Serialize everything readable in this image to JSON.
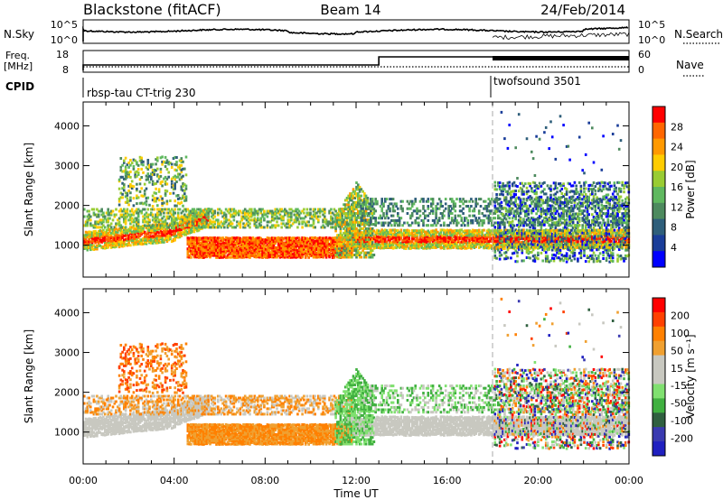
{
  "header": {
    "site": "Blackstone (fitACF)",
    "beam": "Beam 14",
    "date": "24/Feb/2014"
  },
  "top_panels": {
    "nsky_label": "N.Sky",
    "nsky_ticks": [
      "10^5",
      "10^0"
    ],
    "nsearch_label": "N.Search",
    "freq_label": "Freq.",
    "freq_unit": "[MHz]",
    "freq_ticks": [
      "18",
      "8"
    ],
    "nave_label": "Nave",
    "nave_ticks": [
      "60",
      "0"
    ],
    "cpid_label": "CPID",
    "cpid_segments": [
      {
        "name": "rbsp-tau CT-trig 230",
        "start_hour": 0
      },
      {
        "name": "twofsound 3501",
        "start_hour": 18
      }
    ]
  },
  "colors": {
    "power": [
      "#0000ff",
      "#1a3d99",
      "#2e5e7a",
      "#4d8a5e",
      "#5fb85f",
      "#99cc33",
      "#ffcc00",
      "#ff9900",
      "#ff6600",
      "#ff0000"
    ],
    "velocity": [
      "#2020c0",
      "#3a3ab0",
      "#306040",
      "#40b040",
      "#80e070",
      "#c8c8c0",
      "#c8c8c0",
      "#f0a030",
      "#ff8000",
      "#ff4000",
      "#ff0000"
    ]
  },
  "chart_data": [
    {
      "type": "heatmap",
      "name": "power",
      "xlabel": "",
      "ylabel": "Slant Range [km]",
      "xlim": [
        0,
        24
      ],
      "ylim": [
        200,
        4600
      ],
      "yticks": [
        1000,
        2000,
        3000,
        4000
      ],
      "colorbar_label": "Power [dB]",
      "colorbar_ticks": [
        "28",
        "24",
        "20",
        "16",
        "12",
        "8",
        "4"
      ],
      "clim": [
        0,
        32
      ]
    },
    {
      "type": "heatmap",
      "name": "velocity",
      "xlabel": "Time UT",
      "ylabel": "Slant Range [km]",
      "xlim": [
        0,
        24
      ],
      "ylim": [
        200,
        4600
      ],
      "yticks": [
        1000,
        2000,
        3000,
        4000
      ],
      "xtick_labels": [
        "00:00",
        "04:00",
        "08:00",
        "12:00",
        "16:00",
        "20:00",
        "00:00"
      ],
      "colorbar_label": "Velocity [m s⁻¹]",
      "colorbar_ticks": [
        "200",
        "100",
        "50",
        "15",
        "-15",
        "-50",
        "-100",
        "-200"
      ]
    }
  ]
}
